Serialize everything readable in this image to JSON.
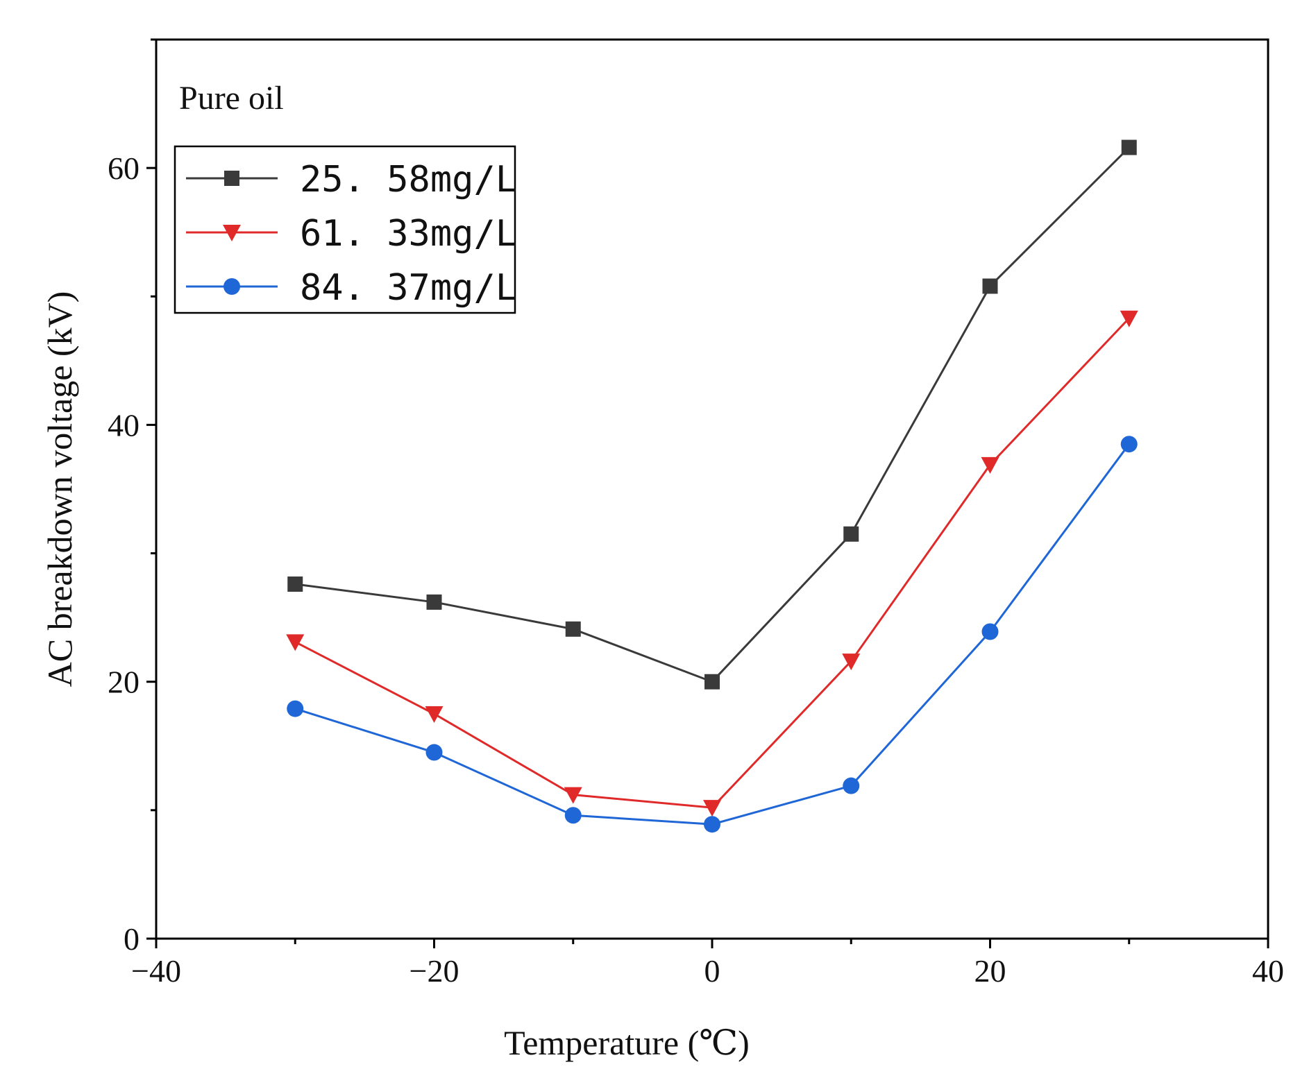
{
  "chart_data": {
    "type": "line",
    "title": "",
    "annotation": "Pure oil",
    "xlabel": "Temperature (℃)",
    "ylabel": "AC breakdown voltage (kV)",
    "xlim": [
      -40,
      40
    ],
    "ylim": [
      0,
      70
    ],
    "xticks": [
      -40,
      -20,
      0,
      20,
      40
    ],
    "yticks": [
      0,
      20,
      40,
      60
    ],
    "x_tick_labels": [
      "−40",
      "−20",
      "0",
      "20",
      "40"
    ],
    "y_tick_labels": [
      "0",
      "20",
      "40",
      "60"
    ],
    "grid": false,
    "legend_position": "top-left",
    "x": [
      -30,
      -20,
      -10,
      0,
      10,
      20,
      30
    ],
    "series": [
      {
        "name": "25. 58mg/L",
        "color": "#3a3a3a",
        "marker": "square",
        "values": [
          27.6,
          26.2,
          24.1,
          20.0,
          31.5,
          50.8,
          61.6
        ]
      },
      {
        "name": "61. 33mg/L",
        "color": "#e02a2a",
        "marker": "triangle-down",
        "values": [
          23.1,
          17.5,
          11.2,
          10.2,
          21.6,
          36.9,
          48.3
        ]
      },
      {
        "name": "84. 37mg/L",
        "color": "#1f66d6",
        "marker": "circle",
        "values": [
          17.9,
          14.5,
          9.6,
          8.9,
          11.9,
          23.9,
          38.5
        ]
      }
    ]
  }
}
